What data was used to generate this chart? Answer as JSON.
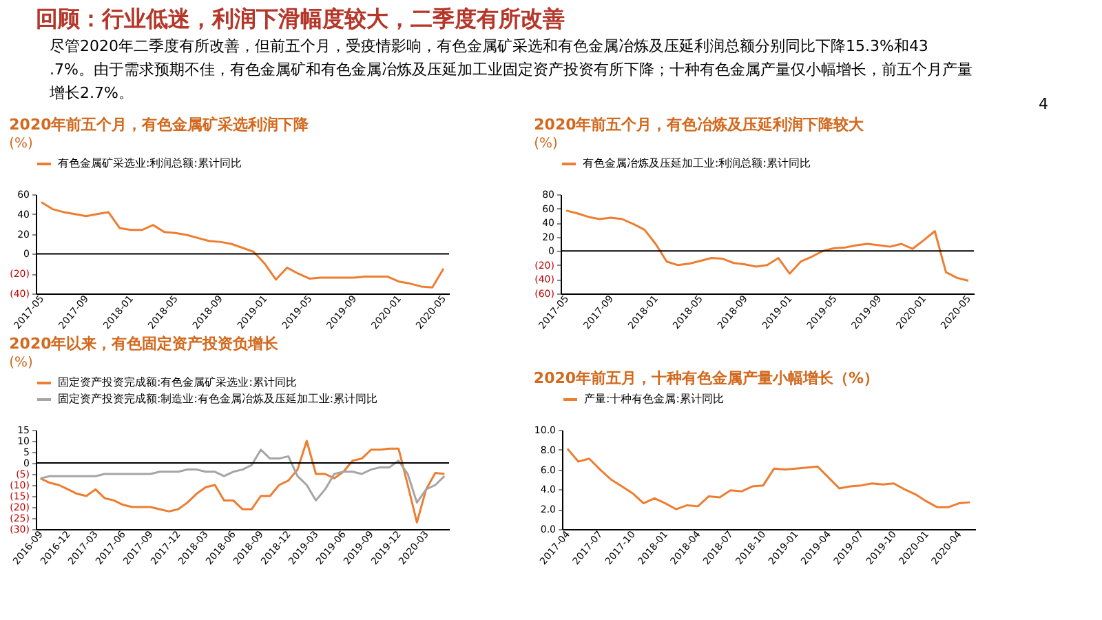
{
  "chart_data": [
    {
      "type": "other",
      "title": "回顾：行业低迷，利润下滑幅度较大，二季度有所改善",
      "annotations": [
        "尽管2020年二季度有所改善，但前五个月，受疫情影响，有色金属矿采选和有色金属冶炼及压延利润总额分别同比下降15.3%和43.7%。由于需求预期不佳，有色金属矿和有色金属冶炼及压延加工业固定资产投资有所下降；十种有色金属产量仅小幅增长，前五个月产量增长2.7%。",
        "4"
      ]
    },
    {
      "type": "line",
      "title": "2020年前五个月，有色金属矿采选利润下降",
      "subtitle": "(%)",
      "legend": "top",
      "grid": false,
      "categories": [
        "2017-05",
        null,
        null,
        null,
        "2017-09",
        null,
        null,
        null,
        "2018-01",
        null,
        null,
        null,
        "2018-05",
        null,
        null,
        null,
        "2018-09",
        null,
        null,
        null,
        "2019-01",
        null,
        null,
        null,
        "2019-05",
        null,
        null,
        null,
        "2019-09",
        null,
        null,
        null,
        "2020-01",
        null,
        null,
        null,
        "2020-05"
      ],
      "ylim": [
        -40,
        60
      ],
      "yticks": [
        60,
        40,
        20,
        0,
        {
          "value": -20,
          "label": "(20)"
        },
        {
          "value": -40,
          "label": "(40)"
        }
      ],
      "ref_lines": [
        {
          "axis": "y",
          "value": 0,
          "color": "#000000"
        }
      ],
      "series": [
        {
          "name": "有色金属矿采选业:利润总额:累计同比",
          "color": "#ed7d31",
          "values": [
            52,
            45,
            42,
            40,
            38,
            40,
            42,
            26,
            24,
            24,
            29,
            22,
            21,
            19,
            16,
            13,
            12,
            10,
            6,
            2,
            -10,
            -26,
            -14,
            -20,
            -25,
            -24,
            -24,
            -24,
            -24,
            -23,
            -23,
            -23,
            -28,
            -30,
            -33,
            -34,
            -15
          ]
        }
      ]
    },
    {
      "type": "line",
      "title": "2020年前五个月，有色冶炼及压延利润下降较大",
      "subtitle": "(%)",
      "legend": "top",
      "grid": false,
      "categories": [
        "2017-05",
        null,
        null,
        null,
        "2017-09",
        null,
        null,
        null,
        "2018-01",
        null,
        null,
        null,
        "2018-05",
        null,
        null,
        null,
        "2018-09",
        null,
        null,
        null,
        "2019-01",
        null,
        null,
        null,
        "2019-05",
        null,
        null,
        null,
        "2019-09",
        null,
        null,
        null,
        "2020-01",
        null,
        null,
        null,
        "2020-05"
      ],
      "ylim": [
        -60,
        80
      ],
      "yticks": [
        80,
        60,
        40,
        20,
        0,
        {
          "value": -20,
          "label": "(20)"
        },
        {
          "value": -40,
          "label": "(40)"
        },
        {
          "value": -60,
          "label": "(60)"
        }
      ],
      "ref_lines": [
        {
          "axis": "y",
          "value": 0,
          "color": "#000000"
        }
      ],
      "series": [
        {
          "name": "有色金属冶炼及压延加工业:利润总额:累计同比",
          "color": "#ed7d31",
          "values": [
            57,
            53,
            48,
            45,
            47,
            45,
            38,
            30,
            10,
            -15,
            -20,
            -18,
            -14,
            -10,
            -11,
            -17,
            -19,
            -22,
            -20,
            -10,
            -32,
            -15,
            -8,
            0,
            4,
            5,
            8,
            10,
            8,
            6,
            10,
            3,
            15,
            28,
            -30,
            -38,
            -42
          ]
        }
      ]
    },
    {
      "type": "line",
      "title": "2020年以来，有色固定资产投资负增长",
      "subtitle": "(%)",
      "legend": "top",
      "grid": false,
      "categories": [
        "2016-09",
        null,
        null,
        "2016-12",
        null,
        null,
        "2017-03",
        null,
        null,
        "2017-06",
        null,
        null,
        "2017-09",
        null,
        null,
        "2017-12",
        null,
        null,
        "2018-03",
        null,
        null,
        "2018-06",
        null,
        null,
        "2018-09",
        null,
        null,
        "2018-12",
        null,
        null,
        "2019-03",
        null,
        null,
        "2019-06",
        null,
        null,
        "2019-09",
        null,
        null,
        "2019-12",
        null,
        null,
        "2020-03",
        null,
        null
      ],
      "ylim": [
        -30,
        15
      ],
      "yticks": [
        15,
        10,
        5,
        0,
        {
          "value": -5,
          "label": "(5)"
        },
        {
          "value": -10,
          "label": "(10)"
        },
        {
          "value": -15,
          "label": "(15)"
        },
        {
          "value": -20,
          "label": "(20)"
        },
        {
          "value": -25,
          "label": "(25)"
        },
        {
          "value": -30,
          "label": "(30)"
        }
      ],
      "ref_lines": [
        {
          "axis": "y",
          "value": 0,
          "color": "#000000"
        }
      ],
      "series": [
        {
          "name": "固定资产投资完成额:有色金属矿采选业:累计同比",
          "color": "#ed7d31",
          "values": [
            -7,
            -9,
            -10,
            -12,
            -14,
            -15,
            -12,
            -16,
            -17,
            -19,
            -20,
            -20,
            -20,
            -21,
            -22,
            -21,
            -18,
            -14,
            -11,
            -10,
            -17,
            -17,
            -21,
            -21,
            -15,
            -15,
            -10,
            -8,
            -3,
            10,
            -5,
            -5,
            -7,
            -4,
            1,
            2,
            6,
            6,
            6.5,
            6.5,
            -10,
            -27,
            -12,
            -4.5,
            -5
          ]
        },
        {
          "name": "固定资产投资完成额:制造业:有色金属冶炼及压延加工业:累计同比",
          "color": "#a5a5a5",
          "values": [
            -7,
            -6,
            -6,
            -6,
            -6,
            -6,
            -6,
            -5,
            -5,
            -5,
            -5,
            -5,
            -5,
            -4,
            -4,
            -4,
            -3,
            -3,
            -4,
            -4,
            -6,
            -4,
            -3,
            -1,
            6,
            2,
            2,
            3,
            -6,
            -10,
            -17,
            -12,
            -5,
            -4,
            -4,
            -5,
            -3,
            -2,
            -2,
            1,
            -5,
            -18,
            -12,
            -10,
            -6
          ]
        }
      ]
    },
    {
      "type": "line",
      "title": "2020年前五月，十种有色金属产量小幅增长（%）",
      "legend": "top",
      "grid": false,
      "categories": [
        "2017-04",
        null,
        null,
        "2017-07",
        null,
        null,
        "2017-10",
        null,
        null,
        "2018-01",
        null,
        null,
        "2018-04",
        null,
        null,
        "2018-07",
        null,
        null,
        "2018-10",
        null,
        null,
        "2019-01",
        null,
        null,
        "2019-04",
        null,
        null,
        "2019-07",
        null,
        null,
        "2019-10",
        null,
        null,
        "2020-01",
        null,
        null,
        "2020-04",
        null
      ],
      "ylim": [
        0,
        10
      ],
      "yticks": [
        {
          "value": 0,
          "label": "0.0"
        },
        {
          "value": 2,
          "label": "2.0"
        },
        {
          "value": 4,
          "label": "4.0"
        },
        {
          "value": 6,
          "label": "6.0"
        },
        {
          "value": 8,
          "label": "8.0"
        },
        {
          "value": 10,
          "label": "10.0"
        }
      ],
      "series": [
        {
          "name": "产量:十种有色金属:累计同比",
          "color": "#ed7d31",
          "values": [
            8.1,
            6.8,
            7.1,
            6.0,
            5.0,
            4.3,
            3.6,
            2.6,
            3.1,
            2.6,
            2.0,
            2.4,
            2.3,
            3.3,
            3.2,
            3.9,
            3.8,
            4.3,
            4.4,
            6.1,
            6.0,
            6.1,
            6.2,
            6.3,
            5.2,
            4.1,
            4.3,
            4.4,
            4.6,
            4.5,
            4.6,
            4.0,
            3.5,
            2.8,
            2.2,
            2.2,
            2.6,
            2.7
          ]
        }
      ]
    }
  ]
}
